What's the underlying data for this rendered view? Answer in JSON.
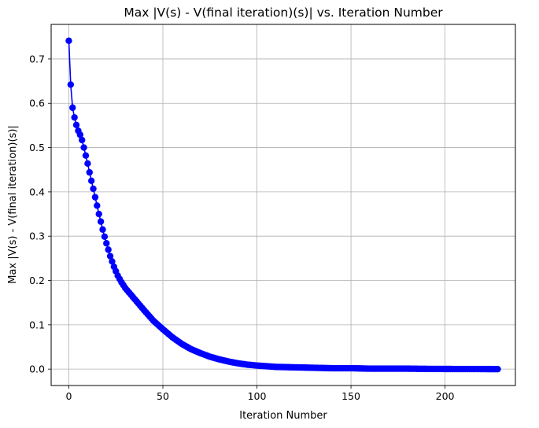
{
  "chart_data": {
    "type": "line",
    "title": "Max |V(s) - V(final iteration)(s)| vs. Iteration Number",
    "xlabel": "Iteration Number",
    "ylabel": "Max |V(s) - V(final iteration)(s)|",
    "xlim": [
      -9.4,
      237.4
    ],
    "ylim": [
      -0.037,
      0.778
    ],
    "xticks": [
      0,
      50,
      100,
      150,
      200
    ],
    "yticks": [
      0.0,
      0.1,
      0.2,
      0.3,
      0.4,
      0.5,
      0.6,
      0.7
    ],
    "ytick_labels": [
      "0.0",
      "0.1",
      "0.2",
      "0.3",
      "0.4",
      "0.5",
      "0.6",
      "0.7"
    ],
    "grid": true,
    "marker": "circle",
    "color": "#0000ff",
    "series": [
      {
        "x": [
          0,
          1,
          2,
          3,
          4,
          5,
          6,
          7,
          8,
          9,
          10,
          11,
          12,
          13,
          14,
          15,
          16,
          17,
          18,
          19,
          20,
          22,
          24,
          26,
          28,
          30,
          33,
          36,
          40,
          45,
          50,
          55,
          60,
          65,
          70,
          75,
          80,
          85,
          90,
          95,
          100,
          110,
          120,
          130,
          140,
          150,
          160,
          170,
          180,
          190,
          200,
          210,
          220,
          228
        ],
        "y": [
          0.741,
          0.642,
          0.59,
          0.568,
          0.551,
          0.538,
          0.529,
          0.517,
          0.5,
          0.482,
          0.464,
          0.444,
          0.425,
          0.407,
          0.388,
          0.369,
          0.35,
          0.333,
          0.315,
          0.299,
          0.284,
          0.255,
          0.231,
          0.211,
          0.196,
          0.183,
          0.168,
          0.153,
          0.133,
          0.109,
          0.09,
          0.072,
          0.057,
          0.045,
          0.036,
          0.028,
          0.022,
          0.017,
          0.013,
          0.01,
          0.008,
          0.005,
          0.004,
          0.003,
          0.002,
          0.002,
          0.001,
          0.001,
          0.001,
          0.0005,
          0.0003,
          0.0002,
          0.0001,
          0.0
        ]
      }
    ]
  }
}
